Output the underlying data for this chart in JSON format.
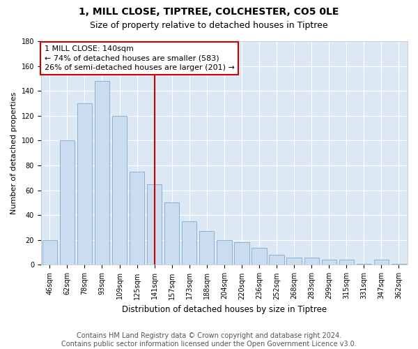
{
  "title1": "1, MILL CLOSE, TIPTREE, COLCHESTER, CO5 0LE",
  "title2": "Size of property relative to detached houses in Tiptree",
  "xlabel": "Distribution of detached houses by size in Tiptree",
  "ylabel": "Number of detached properties",
  "categories": [
    "46sqm",
    "62sqm",
    "78sqm",
    "93sqm",
    "109sqm",
    "125sqm",
    "141sqm",
    "157sqm",
    "173sqm",
    "188sqm",
    "204sqm",
    "220sqm",
    "236sqm",
    "252sqm",
    "268sqm",
    "283sqm",
    "299sqm",
    "315sqm",
    "331sqm",
    "347sqm",
    "362sqm"
  ],
  "values": [
    20,
    100,
    130,
    148,
    120,
    75,
    65,
    50,
    35,
    27,
    20,
    18,
    14,
    8,
    6,
    6,
    4,
    4,
    1,
    4,
    1
  ],
  "bar_color": "#ccdcef",
  "bar_edge_color": "#7aaad0",
  "vline_index": 6,
  "vline_color": "#cc0000",
  "annotation_line1": "1 MILL CLOSE: 140sqm",
  "annotation_line2": "← 74% of detached houses are smaller (583)",
  "annotation_line3": "26% of semi-detached houses are larger (201) →",
  "annotation_box_facecolor": "#ffffff",
  "annotation_box_edgecolor": "#cc0000",
  "ylim": [
    0,
    180
  ],
  "yticks": [
    0,
    20,
    40,
    60,
    80,
    100,
    120,
    140,
    160,
    180
  ],
  "footer_text": "Contains HM Land Registry data © Crown copyright and database right 2024.\nContains public sector information licensed under the Open Government Licence v3.0.",
  "plot_bg_color": "#dce9f5",
  "title1_fontsize": 10,
  "title2_fontsize": 9,
  "tick_fontsize": 7,
  "ylabel_fontsize": 8,
  "xlabel_fontsize": 8.5,
  "annotation_fontsize": 8,
  "footer_fontsize": 7
}
